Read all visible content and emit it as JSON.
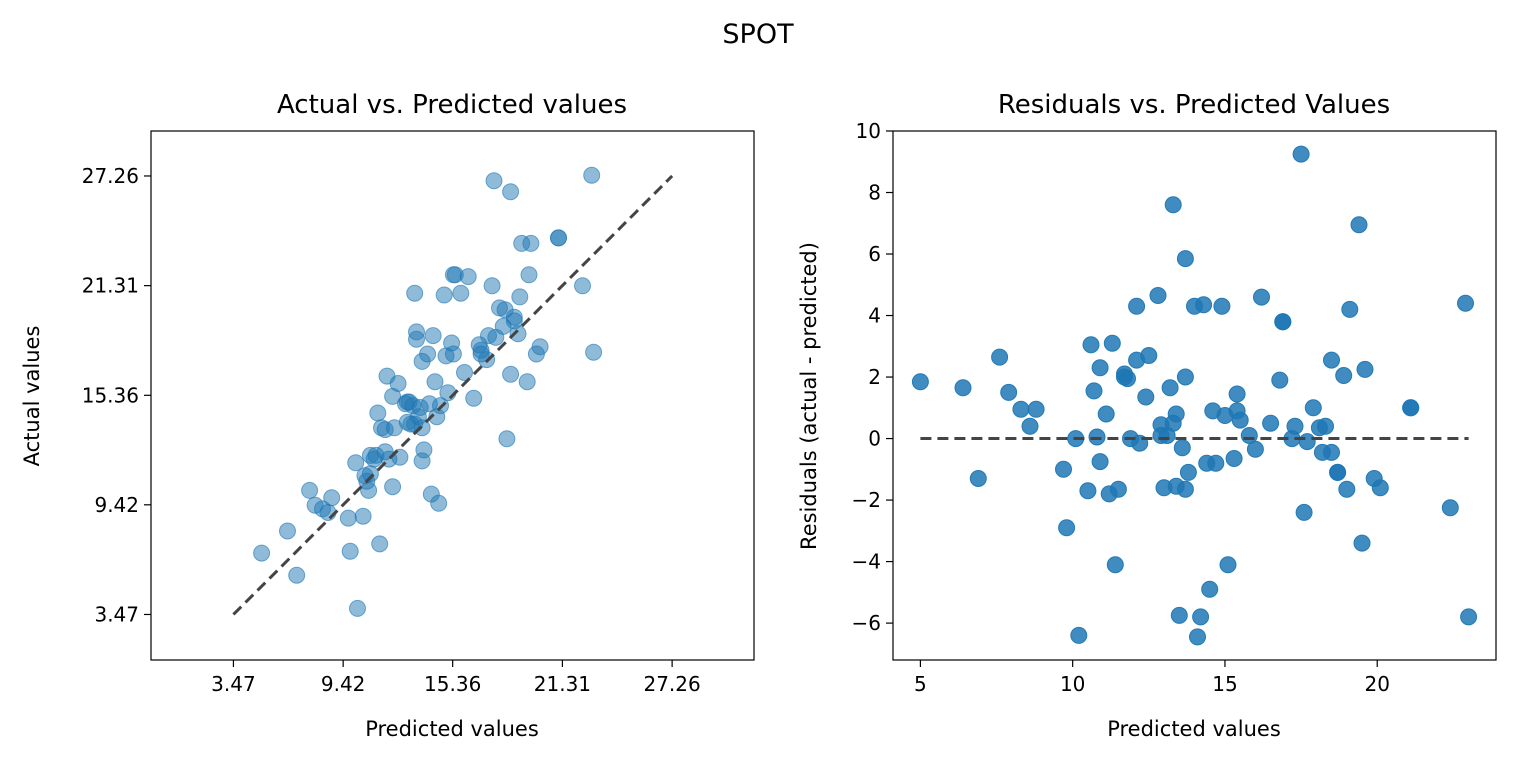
{
  "suptitle": "SPOT",
  "colors": {
    "points": "#1f77b4",
    "reference_line": "#444444"
  },
  "chart_data": [
    {
      "type": "scatter",
      "title": "Actual vs. Predicted values",
      "xlabel": "Predicted values",
      "ylabel": "Actual values",
      "xlim": [
        -1.0,
        31.7
      ],
      "ylim": [
        1.0,
        29.7
      ],
      "xticks": [
        3.47,
        9.42,
        15.36,
        21.31,
        27.26
      ],
      "xtick_labels": [
        "3.47",
        "9.42",
        "15.36",
        "21.31",
        "27.26"
      ],
      "yticks": [
        3.47,
        9.42,
        15.36,
        21.31,
        27.26
      ],
      "ytick_labels": [
        "3.47",
        "9.42",
        "15.36",
        "21.31",
        "27.26"
      ],
      "grid": false,
      "reference_line": {
        "style": "dashed",
        "x": [
          3.47,
          27.26
        ],
        "y": [
          3.47,
          27.26
        ]
      },
      "point_alpha": 0.5,
      "x": [
        5.0,
        6.4,
        6.9,
        7.6,
        7.9,
        8.3,
        8.6,
        8.8,
        9.7,
        9.8,
        10.2,
        10.5,
        10.6,
        10.7,
        10.8,
        10.9,
        10.9,
        11.1,
        11.2,
        11.3,
        11.4,
        11.5,
        11.7,
        11.8,
        11.9,
        12.1,
        12.1,
        12.2,
        12.5,
        12.9,
        13.2,
        13.3,
        13.4,
        13.4,
        13.7,
        13.7,
        13.7,
        13.8,
        14.0,
        14.2,
        14.3,
        14.5,
        14.7,
        14.9,
        15.0,
        15.3,
        15.4,
        15.4,
        15.5,
        16.0,
        16.2,
        16.5,
        16.9,
        16.9,
        17.3,
        17.5,
        17.6,
        17.7,
        17.9,
        18.2,
        18.3,
        18.5,
        18.5,
        18.7,
        18.7,
        18.9,
        19.0,
        19.1,
        19.4,
        19.5,
        19.6,
        19.9,
        20.1,
        21.1,
        21.1,
        22.4,
        22.9,
        23.0,
        13.3,
        17.2,
        13.5,
        11.7,
        12.4,
        12.8,
        13.1,
        14.1,
        14.6,
        15.1,
        13.0,
        16.8,
        15.8,
        18.1,
        13.6,
        12.9,
        10.1,
        14.4
      ],
      "y": [
        6.8,
        8.0,
        5.6,
        10.2,
        9.4,
        9.2,
        9.0,
        9.8,
        8.7,
        6.9,
        3.8,
        8.8,
        11.0,
        10.7,
        10.2,
        12.1,
        11.1,
        11.9,
        12.1,
        14.4,
        7.3,
        13.6,
        13.5,
        16.4,
        11.9,
        10.4,
        15.3,
        13.6,
        12.0,
        15.0,
        14.8,
        20.9,
        18.4,
        18.8,
        17.2,
        13.6,
        11.8,
        12.4,
        17.6,
        10.0,
        18.6,
        14.2,
        14.8,
        20.8,
        17.5,
        18.2,
        21.9,
        17.6,
        21.9,
        16.6,
        21.8,
        15.2,
        17.8,
        17.6,
        18.6,
        21.3,
        27.0,
        18.5,
        20.1,
        20.0,
        13.0,
        26.4,
        16.5,
        19.4,
        19.6,
        18.7,
        20.7,
        23.6,
        16.1,
        21.9,
        23.6,
        17.6,
        18.0,
        23.9,
        23.9,
        21.3,
        27.3,
        17.7,
        13.8,
        17.3,
        14.2,
        12.3,
        16.0,
        14.9,
        13.8,
        14.9,
        9.5,
        15.5,
        15.0,
        18.1,
        20.9,
        19.1,
        14.7,
        13.9,
        11.7,
        16.1
      ]
    },
    {
      "type": "scatter",
      "title": "Residuals vs. Predicted Values",
      "xlabel": "Predicted values",
      "ylabel": "Residuals (actual - predicted)",
      "xlim": [
        4.1,
        23.9
      ],
      "ylim": [
        -7.2,
        10.0
      ],
      "xticks": [
        5,
        10,
        15,
        20
      ],
      "xtick_labels": [
        "5",
        "10",
        "15",
        "20"
      ],
      "yticks": [
        -6,
        -4,
        -2,
        0,
        2,
        4,
        6,
        8,
        10
      ],
      "ytick_labels": [
        "−6",
        "−4",
        "−2",
        "0",
        "2",
        "4",
        "6",
        "8",
        "10"
      ],
      "grid": false,
      "reference_line": {
        "style": "dashed",
        "x": [
          5.0,
          23.0
        ],
        "y": [
          0,
          0
        ]
      },
      "point_alpha": 0.85,
      "x": [
        5.0,
        6.4,
        6.9,
        7.6,
        7.9,
        8.3,
        8.6,
        8.8,
        9.7,
        9.8,
        10.2,
        10.5,
        10.6,
        10.7,
        10.8,
        10.9,
        10.9,
        11.1,
        11.2,
        11.3,
        11.4,
        11.5,
        11.7,
        11.8,
        11.9,
        12.1,
        12.1,
        12.2,
        12.5,
        12.9,
        13.2,
        13.3,
        13.4,
        13.4,
        13.7,
        13.7,
        13.7,
        13.8,
        14.0,
        14.2,
        14.3,
        14.5,
        14.7,
        14.9,
        15.0,
        15.3,
        15.4,
        15.4,
        15.5,
        16.0,
        16.2,
        16.5,
        16.9,
        16.9,
        17.3,
        17.5,
        17.6,
        17.7,
        17.9,
        18.2,
        18.3,
        18.5,
        18.5,
        18.7,
        18.7,
        18.9,
        19.0,
        19.1,
        19.4,
        19.5,
        19.6,
        19.9,
        20.1,
        21.1,
        21.1,
        22.4,
        22.9,
        23.0,
        13.3,
        17.2,
        13.5,
        11.7,
        12.4,
        12.8,
        13.1,
        14.1,
        14.6,
        15.1,
        13.0,
        16.8,
        15.8,
        18.1,
        13.6,
        12.9,
        10.1,
        14.4
      ],
      "y": [
        1.85,
        1.65,
        -1.3,
        2.65,
        1.5,
        0.95,
        0.4,
        0.95,
        -1.0,
        -2.9,
        -6.4,
        -1.7,
        3.05,
        1.55,
        0.05,
        2.3,
        -0.75,
        0.8,
        -1.8,
        3.1,
        -4.1,
        -1.65,
        2.1,
        1.95,
        0.0,
        4.3,
        2.55,
        -0.15,
        2.7,
        0.1,
        1.65,
        7.6,
        0.8,
        -1.55,
        5.85,
        2.0,
        -1.65,
        -1.1,
        4.3,
        -5.8,
        4.35,
        -4.9,
        -0.8,
        4.3,
        0.75,
        -0.65,
        1.45,
        0.9,
        0.6,
        -0.35,
        4.6,
        0.5,
        3.8,
        3.8,
        0.4,
        9.25,
        -2.4,
        -0.1,
        1.0,
        -0.45,
        0.4,
        2.55,
        -0.45,
        -1.1,
        -1.1,
        2.05,
        -1.65,
        4.2,
        6.95,
        -3.4,
        2.25,
        -1.3,
        -1.6,
        1.0,
        1.0,
        -2.25,
        4.4,
        -5.8,
        0.5,
        0.0,
        -5.75,
        2.0,
        1.35,
        4.65,
        0.1,
        -6.45,
        0.9,
        -4.1,
        -1.6,
        1.9,
        0.1,
        0.35,
        -0.3,
        0.45,
        0.0,
        -0.8
      ]
    }
  ]
}
